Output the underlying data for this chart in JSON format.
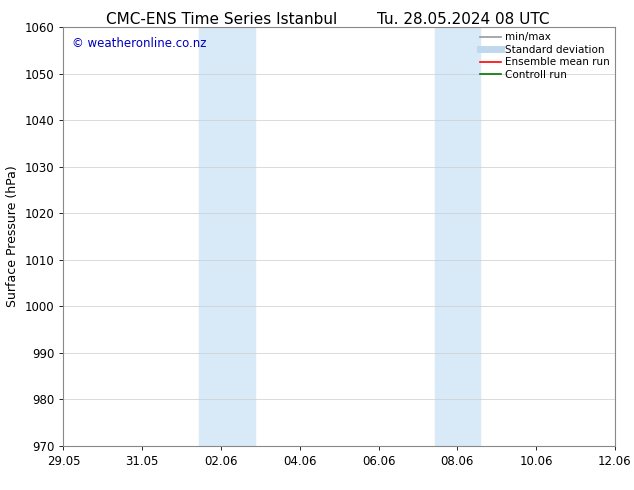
{
  "title_left": "CMC-ENS Time Series Istanbul",
  "title_right": "Tu. 28.05.2024 08 UTC",
  "ylabel": "Surface Pressure (hPa)",
  "ylim": [
    970,
    1060
  ],
  "yticks": [
    970,
    980,
    990,
    1000,
    1010,
    1020,
    1030,
    1040,
    1050,
    1060
  ],
  "xlim": [
    0,
    14
  ],
  "x_tick_labels": [
    "29.05",
    "31.05",
    "02.06",
    "04.06",
    "06.06",
    "08.06",
    "10.06",
    "12.06"
  ],
  "x_tick_positions": [
    0,
    2,
    4,
    6,
    8,
    10,
    12,
    14
  ],
  "shaded_bands": [
    {
      "x_start": 3.43,
      "x_end": 4.86
    },
    {
      "x_start": 9.43,
      "x_end": 10.57
    }
  ],
  "shaded_color": "#d8eaf7",
  "background_color": "#ffffff",
  "watermark_text": "© weatheronline.co.nz",
  "watermark_color": "#0000bb",
  "watermark_fontsize": 8.5,
  "legend_items": [
    {
      "label": "min/max",
      "color": "#999999",
      "linewidth": 1.2,
      "linestyle": "-"
    },
    {
      "label": "Standard deviation",
      "color": "#c0d8ee",
      "linewidth": 5,
      "linestyle": "-"
    },
    {
      "label": "Ensemble mean run",
      "color": "#ff0000",
      "linewidth": 1.2,
      "linestyle": "-"
    },
    {
      "label": "Controll run",
      "color": "#007700",
      "linewidth": 1.2,
      "linestyle": "-"
    }
  ],
  "title_fontsize": 11,
  "ylabel_fontsize": 9,
  "tick_fontsize": 8.5,
  "legend_fontsize": 7.5,
  "grid_color": "#cccccc",
  "grid_linewidth": 0.5,
  "spine_color": "#888888",
  "spine_linewidth": 0.8
}
